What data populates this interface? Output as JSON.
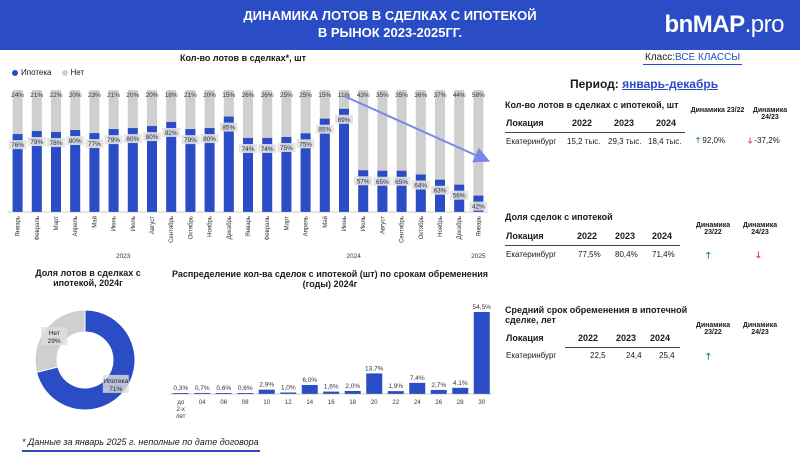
{
  "header": {
    "title_line1": "ДИНАМИКА  ЛОТОВ В СДЕЛКАХ С ИПОТЕКОЙ",
    "title_line2": "В РЫНОК 2023-2025ГГ.",
    "logo_main": "bnMAP",
    "logo_suffix": ".pro",
    "bg_color": "#2a4cc4"
  },
  "class_filter": {
    "label": "Класс:",
    "value": "ВСЕ КЛАССЫ"
  },
  "period": {
    "label": "Период:",
    "value": "январь-декабрь"
  },
  "footnote": "* Данные за январь 2025 г. неполные по дате договора",
  "colors": {
    "mortgage": "#2a4cc4",
    "none": "#cfcfcf",
    "up": "#1f8a3a",
    "down": "#d9352b"
  },
  "chart_data": [
    {
      "type": "bar",
      "stacked": true,
      "title": "Кол-во лотов в сделках*, шт",
      "legend_position": "top-left",
      "categories": [
        "Январь",
        "Февраль",
        "Март",
        "Апрель",
        "Май",
        "Июнь",
        "Июль",
        "Август",
        "Сентябрь",
        "Октябрь",
        "Ноябрь",
        "Декабрь",
        "Январь",
        "Февраль",
        "Март",
        "Апрель",
        "Май",
        "Июнь",
        "Июль",
        "Август",
        "Сентябрь",
        "Октябрь",
        "Ноябрь",
        "Декабрь",
        "Январь"
      ],
      "year_labels": [
        {
          "label": "2023",
          "start": 0,
          "end": 11
        },
        {
          "label": "2024",
          "start": 12,
          "end": 23
        },
        {
          "label": "2025",
          "start": 24,
          "end": 24
        }
      ],
      "bar_heights": [
        0.84,
        0.84,
        0.84,
        0.84,
        0.84,
        0.86,
        0.86,
        0.88,
        0.9,
        0.86,
        0.86,
        0.92,
        0.82,
        0.82,
        0.82,
        0.86,
        0.9,
        0.95,
        0.6,
        0.52,
        0.52,
        0.48,
        0.42,
        0.4,
        0.32
      ],
      "series": [
        {
          "name": "Ипотека",
          "color": "#2a4cc4",
          "labels": [
            "76%",
            "79%",
            "78%",
            "80%",
            "77%",
            "79%",
            "80%",
            "80%",
            "82%",
            "79%",
            "80%",
            "85%",
            "74%",
            "74%",
            "75%",
            "75%",
            "85%",
            "89%",
            "57%",
            "65%",
            "65%",
            "64%",
            "63%",
            "56%",
            "42%"
          ]
        },
        {
          "name": "Нет",
          "color": "#cfcfcf",
          "labels": [
            "24%",
            "21%",
            "22%",
            "20%",
            "23%",
            "21%",
            "20%",
            "20%",
            "18%",
            "21%",
            "20%",
            "15%",
            "26%",
            "26%",
            "25%",
            "25%",
            "15%",
            "11%",
            "43%",
            "35%",
            "35%",
            "36%",
            "37%",
            "44%",
            "58%"
          ]
        }
      ],
      "trend_arrow": {
        "from_index": 17,
        "to_index": 24
      }
    },
    {
      "type": "pie",
      "title_line1": "Доля лотов в сделках с",
      "title_line2": "ипотекой, 2024г",
      "slices": [
        {
          "name": "Ипотека",
          "value": 71,
          "label": "71%",
          "color": "#2a4cc4"
        },
        {
          "name": "Нет",
          "value": 29,
          "label": "29%",
          "color": "#cfcfcf"
        }
      ]
    },
    {
      "type": "bar",
      "title_line1": "Распределение кол-ва сделок с ипотекой (шт) по срокам обременения",
      "title_line2": "(годы) 2024г",
      "categories": [
        "до 2-х лет",
        "04",
        "06",
        "08",
        "10",
        "12",
        "14",
        "16",
        "18",
        "20",
        "22",
        "24",
        "26",
        "28",
        "30"
      ],
      "values": [
        0.3,
        0.7,
        0.6,
        0.6,
        2.9,
        1.0,
        6.0,
        1.6,
        2.0,
        13.7,
        1.9,
        7.4,
        2.7,
        4.1,
        54.5
      ],
      "labels": [
        "0,3%",
        "0,7%",
        "0,6%",
        "0,6%",
        "2,9%",
        "1,0%",
        "6,0%",
        "1,6%",
        "2,0%",
        "13,7%",
        "1,9%",
        "7,4%",
        "2,7%",
        "4,1%",
        "54,5%"
      ],
      "ylim": [
        0,
        54.5
      ]
    }
  ],
  "table1": {
    "title": "Кол-во лотов в сделках с ипотекой, шт",
    "col_location": "Локация",
    "years": [
      "2022",
      "2023",
      "2024"
    ],
    "dyn1": "Динамика 23/22",
    "dyn2": "Динамика 24/23",
    "row": {
      "location": "Екатеринбург",
      "v1": "15,2 тыс.",
      "v2": "29,3 тыс.",
      "v3": "18,4 тыс.",
      "d1": "92,0%",
      "d2": "-37,2%"
    },
    "arrow_up": "🡑",
    "arrow_down": "🡓"
  },
  "table2": {
    "title": "Доля сделок с ипотекой",
    "col_location": "Локация",
    "years": [
      "2022",
      "2023",
      "2024"
    ],
    "dyn1": "Динамика 23/22",
    "dyn2": "Динамика 24/23",
    "row": {
      "location": "Екатеринбург",
      "v1": "77,5%",
      "v2": "80,4%",
      "v3": "71,4%"
    },
    "arrow_up": "🡑",
    "arrow_down": "🡓"
  },
  "table3": {
    "title_line1": "Средний срок обременения в ипотечной",
    "title_line2": "сделке, лет",
    "col_location": "Локация",
    "years": [
      "2022",
      "2023",
      "2024"
    ],
    "dyn1": "Динамика 23/22",
    "dyn2": "Динамика 24/23",
    "row": {
      "location": "Екатеринбург",
      "v1": "22,5",
      "v2": "24,4",
      "v3": "25,4"
    },
    "arrow_up": "🡑"
  }
}
